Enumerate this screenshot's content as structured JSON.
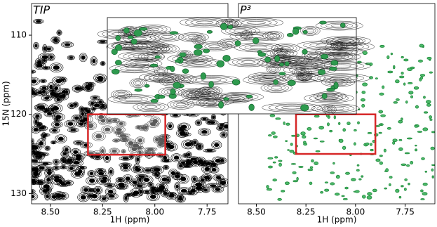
{
  "chart_data": [
    {
      "type": "contour",
      "title": "TIP",
      "xlabel": "1H (ppm)",
      "ylabel": "15N (ppm)",
      "xlim": [
        8.59,
        7.65
      ],
      "ylim": [
        131.3,
        106
      ],
      "xticks": [
        {
          "value": 8.5,
          "label": "8.50"
        },
        {
          "value": 8.25,
          "label": "8.25"
        },
        {
          "value": 8.0,
          "label": "8.00"
        },
        {
          "value": 7.75,
          "label": "7.75"
        }
      ],
      "yticks": [
        110,
        120,
        130
      ],
      "contour_color": "#000000",
      "highlight": {
        "x": [
          8.32,
          7.95
        ],
        "y": [
          120,
          125.1
        ],
        "color": "#d62728"
      }
    },
    {
      "type": "contour",
      "title": "P³",
      "xlabel": "1H (ppm)",
      "xlim": [
        8.59,
        7.6
      ],
      "ylim": [
        131.3,
        106
      ],
      "xticks": [
        {
          "value": 8.5,
          "label": "8.50"
        },
        {
          "value": 8.25,
          "label": "8.25"
        },
        {
          "value": 8.0,
          "label": "8.00"
        },
        {
          "value": 7.75,
          "label": "7.75"
        }
      ],
      "contour_color": "#1f8a3a",
      "highlight": {
        "x": [
          8.3,
          7.9
        ],
        "y": [
          120,
          125
        ],
        "color": "#d62728"
      }
    }
  ]
}
